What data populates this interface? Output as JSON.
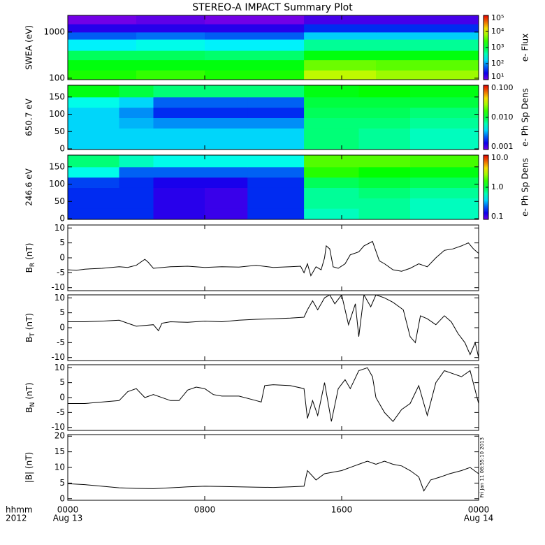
{
  "title": "STEREO-A IMPACT Summary Plot",
  "footnote": "Fri Jan 11 08:55:10 2013",
  "chart_data": [
    {
      "type": "heatmap",
      "ylabel": "SWEA (eV)",
      "ylog": true,
      "ylim": [
        93,
        2300
      ],
      "yticks": [
        100,
        1000
      ],
      "xlim": [
        0,
        24
      ],
      "xticks": [
        0,
        8,
        16,
        24
      ],
      "x_edges": [
        0,
        4,
        8,
        13.8,
        18,
        24
      ],
      "y_edges": [
        93,
        150,
        250,
        400,
        700,
        1000,
        1500,
        2300
      ],
      "values": [
        [
          2000,
          2500,
          2000,
          8000,
          6000
        ],
        [
          1500,
          1500,
          1500,
          4000,
          3500
        ],
        [
          800,
          800,
          700,
          1500,
          1500
        ],
        [
          200,
          250,
          200,
          500,
          500
        ],
        [
          60,
          70,
          60,
          150,
          150
        ],
        [
          20,
          20,
          20,
          40,
          40
        ],
        [
          10,
          12,
          10,
          15,
          15
        ]
      ],
      "colorbar": {
        "label": "e- Flux",
        "log": true,
        "lim": [
          10,
          100000
        ],
        "ticks": [
          {
            "value": 100000,
            "label": "10⁵"
          },
          {
            "value": 10000,
            "label": "10⁴"
          },
          {
            "value": 1000,
            "label": "10³"
          },
          {
            "value": 100,
            "label": "10²"
          },
          {
            "value": 10,
            "label": "10¹"
          }
        ]
      }
    },
    {
      "type": "heatmap",
      "ylabel": "650.7 eV",
      "ylim": [
        -2,
        184
      ],
      "yticks": [
        0,
        50,
        100,
        150
      ],
      "xlim": [
        0,
        24
      ],
      "xticks": [
        0,
        8,
        16,
        24
      ],
      "x_edges": [
        0,
        3,
        5,
        8,
        10.5,
        13.8,
        17,
        20,
        24
      ],
      "y_edges": [
        -2,
        30,
        60,
        90,
        120,
        150,
        184
      ],
      "values": [
        [
          0.004,
          0.004,
          0.004,
          0.004,
          0.004,
          0.008,
          0.007,
          0.006
        ],
        [
          0.004,
          0.004,
          0.004,
          0.004,
          0.004,
          0.008,
          0.007,
          0.006
        ],
        [
          0.004,
          0.0035,
          0.003,
          0.003,
          0.003,
          0.008,
          0.008,
          0.007
        ],
        [
          0.004,
          0.003,
          0.002,
          0.002,
          0.002,
          0.009,
          0.009,
          0.008
        ],
        [
          0.005,
          0.004,
          0.0025,
          0.0025,
          0.0025,
          0.01,
          0.01,
          0.01
        ],
        [
          0.012,
          0.01,
          0.008,
          0.008,
          0.008,
          0.012,
          0.013,
          0.012
        ]
      ],
      "colorbar": {
        "label": "e- Ph Sp Dens",
        "log": true,
        "lim": [
          0.001,
          0.1
        ],
        "ticks": [
          {
            "value": 0.1,
            "label": "0.100"
          },
          {
            "value": 0.01,
            "label": "0.010"
          },
          0.001
        ]
      }
    },
    {
      "type": "heatmap",
      "ylabel": "246.6 eV",
      "ylim": [
        -2,
        184
      ],
      "yticks": [
        0,
        50,
        100,
        150
      ],
      "xlim": [
        0,
        24
      ],
      "xticks": [
        0,
        8,
        16,
        24
      ],
      "x_edges": [
        0,
        3,
        5,
        8,
        10.5,
        13.8,
        17,
        20,
        24
      ],
      "y_edges": [
        -2,
        30,
        60,
        90,
        120,
        150,
        184
      ],
      "values": [
        [
          0.2,
          0.2,
          0.14,
          0.13,
          0.2,
          0.6,
          0.7,
          0.6
        ],
        [
          0.2,
          0.2,
          0.14,
          0.13,
          0.2,
          0.7,
          0.7,
          0.6
        ],
        [
          0.2,
          0.2,
          0.14,
          0.13,
          0.2,
          0.7,
          0.8,
          0.7
        ],
        [
          0.22,
          0.2,
          0.15,
          0.15,
          0.2,
          0.9,
          1.0,
          0.9
        ],
        [
          0.5,
          0.25,
          0.25,
          0.25,
          0.25,
          1.5,
          1.3,
          1.2
        ],
        [
          0.8,
          0.6,
          0.5,
          0.5,
          0.5,
          1.8,
          1.8,
          1.7
        ]
      ],
      "colorbar": {
        "label": "e- Ph Sp Dens",
        "log": true,
        "lim": [
          0.1,
          10
        ],
        "ticks": [
          {
            "value": 10,
            "label": "10.0"
          },
          {
            "value": 1,
            "label": "1.0"
          },
          0.1
        ]
      }
    },
    {
      "type": "line",
      "ylabel": "B",
      "ylabel_sub": "R",
      "ylabel_unit": "(nT)",
      "color": "#000000",
      "ylim": [
        -11,
        11
      ],
      "yticks": [
        -10,
        -5,
        0,
        5,
        10
      ],
      "xlim": [
        0,
        24
      ],
      "xticks": [
        0,
        8,
        16,
        24
      ],
      "x": [
        0,
        0.5,
        1,
        2,
        3,
        3.5,
        4,
        4.5,
        4.7,
        5,
        6,
        7,
        8,
        9,
        10,
        11,
        12,
        13,
        13.6,
        13.8,
        14,
        14.2,
        14.5,
        14.8,
        15,
        15.1,
        15.3,
        15.5,
        15.8,
        16.2,
        16.5,
        17,
        17.3,
        17.8,
        18.2,
        18.5,
        19,
        19.5,
        20,
        20.5,
        21,
        21.5,
        22,
        22.5,
        23,
        23.4,
        23.7,
        24
      ],
      "values": [
        -4,
        -4.2,
        -3.8,
        -3.5,
        -3,
        -3.2,
        -2.5,
        -0.5,
        -1.5,
        -3.5,
        -3,
        -2.8,
        -3.2,
        -3,
        -3.1,
        -2.5,
        -3.2,
        -3,
        -2.8,
        -5,
        -2,
        -6,
        -3,
        -4,
        0,
        4,
        3,
        -3,
        -3.5,
        -2,
        1,
        2,
        4,
        5.5,
        -1,
        -2,
        -4,
        -4.5,
        -3.5,
        -2,
        -3,
        0,
        2.5,
        3,
        4,
        5,
        3,
        1.5
      ]
    },
    {
      "type": "line",
      "ylabel": "B",
      "ylabel_sub": "T",
      "ylabel_unit": "(nT)",
      "color": "#000000",
      "ylim": [
        -11,
        11
      ],
      "yticks": [
        -10,
        -5,
        0,
        5,
        10
      ],
      "xlim": [
        0,
        24
      ],
      "xticks": [
        0,
        8,
        16,
        24
      ],
      "x": [
        0,
        1,
        2,
        3,
        3.5,
        4,
        5,
        5.3,
        5.5,
        6,
        7,
        8,
        9,
        10,
        11,
        12,
        13,
        13.8,
        14,
        14.3,
        14.6,
        15,
        15.3,
        15.6,
        16,
        16.4,
        16.8,
        17,
        17.3,
        17.7,
        18,
        18.5,
        19,
        19.6,
        20,
        20.3,
        20.6,
        21,
        21.5,
        22,
        22.4,
        22.8,
        23.2,
        23.5,
        23.8,
        24
      ],
      "values": [
        2,
        2,
        2.2,
        2.5,
        1.5,
        0.5,
        1,
        -1,
        1.5,
        2,
        1.8,
        2.2,
        2,
        2.5,
        2.8,
        3,
        3.2,
        3.5,
        6,
        9,
        6,
        10,
        11,
        8,
        11,
        1,
        8,
        -3,
        11,
        7,
        11,
        10,
        8.5,
        6,
        -3,
        -5,
        4,
        3,
        1,
        4,
        2,
        -2,
        -5,
        -9,
        -5,
        -10
      ]
    },
    {
      "type": "line",
      "ylabel": "B",
      "ylabel_sub": "N",
      "ylabel_unit": "(nT)",
      "color": "#000000",
      "ylim": [
        -11,
        11
      ],
      "yticks": [
        -10,
        -5,
        0,
        5,
        10
      ],
      "xlim": [
        0,
        24
      ],
      "xticks": [
        0,
        8,
        16,
        24
      ],
      "x": [
        0,
        1,
        2,
        3,
        3.5,
        4,
        4.5,
        5,
        6,
        6.5,
        7,
        7.5,
        8,
        8.5,
        9,
        10,
        11,
        11.3,
        11.5,
        12,
        13,
        13.8,
        14,
        14.3,
        14.6,
        15,
        15.4,
        15.8,
        16.2,
        16.5,
        17,
        17.5,
        17.8,
        18,
        18.5,
        19,
        19.5,
        20,
        20.5,
        21,
        21.5,
        22,
        22.5,
        23,
        23.5,
        24
      ],
      "values": [
        -2,
        -2,
        -1.5,
        -1,
        2,
        3,
        0,
        1,
        -1,
        -1,
        2.5,
        3.5,
        3,
        1,
        0.5,
        0.5,
        -1,
        -1.5,
        4,
        4.3,
        4,
        3,
        -7,
        -1,
        -6,
        5,
        -8,
        3,
        6,
        3,
        9,
        10,
        7,
        0,
        -5,
        -8,
        -4,
        -2,
        4,
        -6,
        5,
        9,
        8,
        7,
        9,
        -2
      ]
    },
    {
      "type": "line",
      "ylabel": "|B| (nT)",
      "color": "#000000",
      "ylim": [
        -0.5,
        20.5
      ],
      "yticks": [
        0,
        5,
        10,
        15,
        20
      ],
      "xlim": [
        0,
        24
      ],
      "xticks": [
        {
          "value": 0,
          "label": "0000"
        },
        {
          "value": 8,
          "label": "0800"
        },
        {
          "value": 16,
          "label": "1600"
        },
        {
          "value": 24,
          "label": "0000"
        }
      ],
      "xlabel_rows": [
        "hhmm",
        "2012"
      ],
      "date_labels": [
        {
          "value": 0,
          "label": "Aug 13"
        },
        {
          "value": 24,
          "label": "Aug 14"
        }
      ],
      "x": [
        0,
        1,
        2,
        3,
        4,
        5,
        6,
        7,
        8,
        9,
        10,
        11,
        12,
        13,
        13.8,
        14,
        14.5,
        15,
        16,
        17,
        17.5,
        18,
        18.5,
        19,
        19.5,
        20,
        20.5,
        20.8,
        21.2,
        21.8,
        22.3,
        23,
        23.5,
        24
      ],
      "values": [
        4.8,
        4.5,
        4,
        3.5,
        3.3,
        3.2,
        3.5,
        3.8,
        4,
        3.9,
        3.8,
        3.7,
        3.6,
        3.8,
        4,
        9,
        6,
        8,
        9,
        11,
        12,
        11,
        12,
        11,
        10.5,
        9,
        7,
        2.5,
        6,
        7,
        8,
        9,
        10,
        8
      ]
    }
  ]
}
